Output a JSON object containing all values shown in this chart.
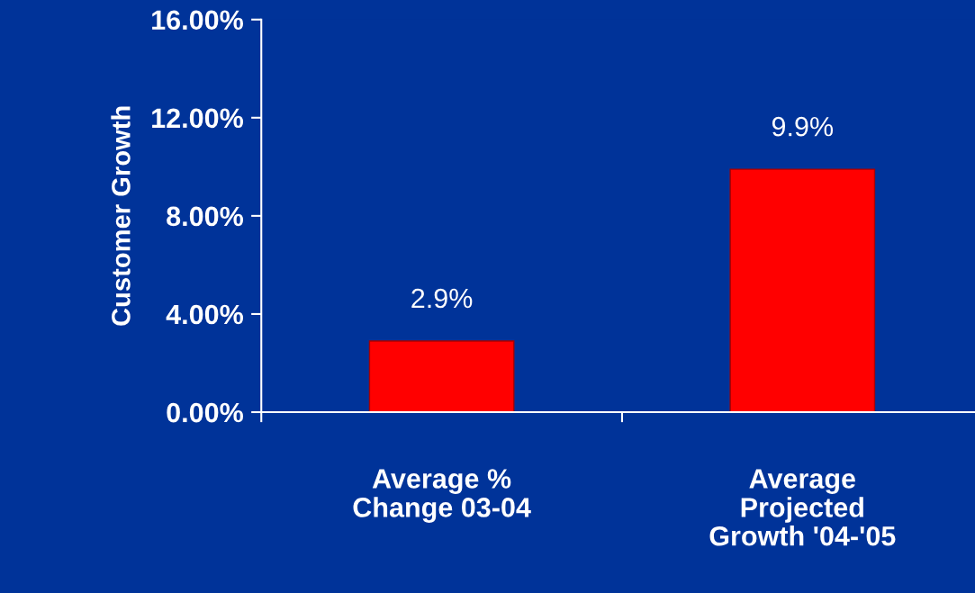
{
  "chart_data": {
    "type": "bar",
    "ylabel": "Customer Growth",
    "categories": [
      "Average %\nChange 03-04",
      "Average\nProjected\nGrowth '04-'05"
    ],
    "values": [
      2.9,
      9.9
    ],
    "value_labels": [
      "2.9%",
      "9.9%"
    ],
    "color": "#ff0000",
    "ylim": [
      0,
      16
    ],
    "yticks": [
      {
        "value": 0,
        "label": "0.00%"
      },
      {
        "value": 4,
        "label": "4.00%"
      },
      {
        "value": 8,
        "label": "8.00%"
      },
      {
        "value": 12,
        "label": "12.00%"
      },
      {
        "value": 16,
        "label": "16.00%"
      }
    ],
    "grid": false,
    "legend": false
  }
}
